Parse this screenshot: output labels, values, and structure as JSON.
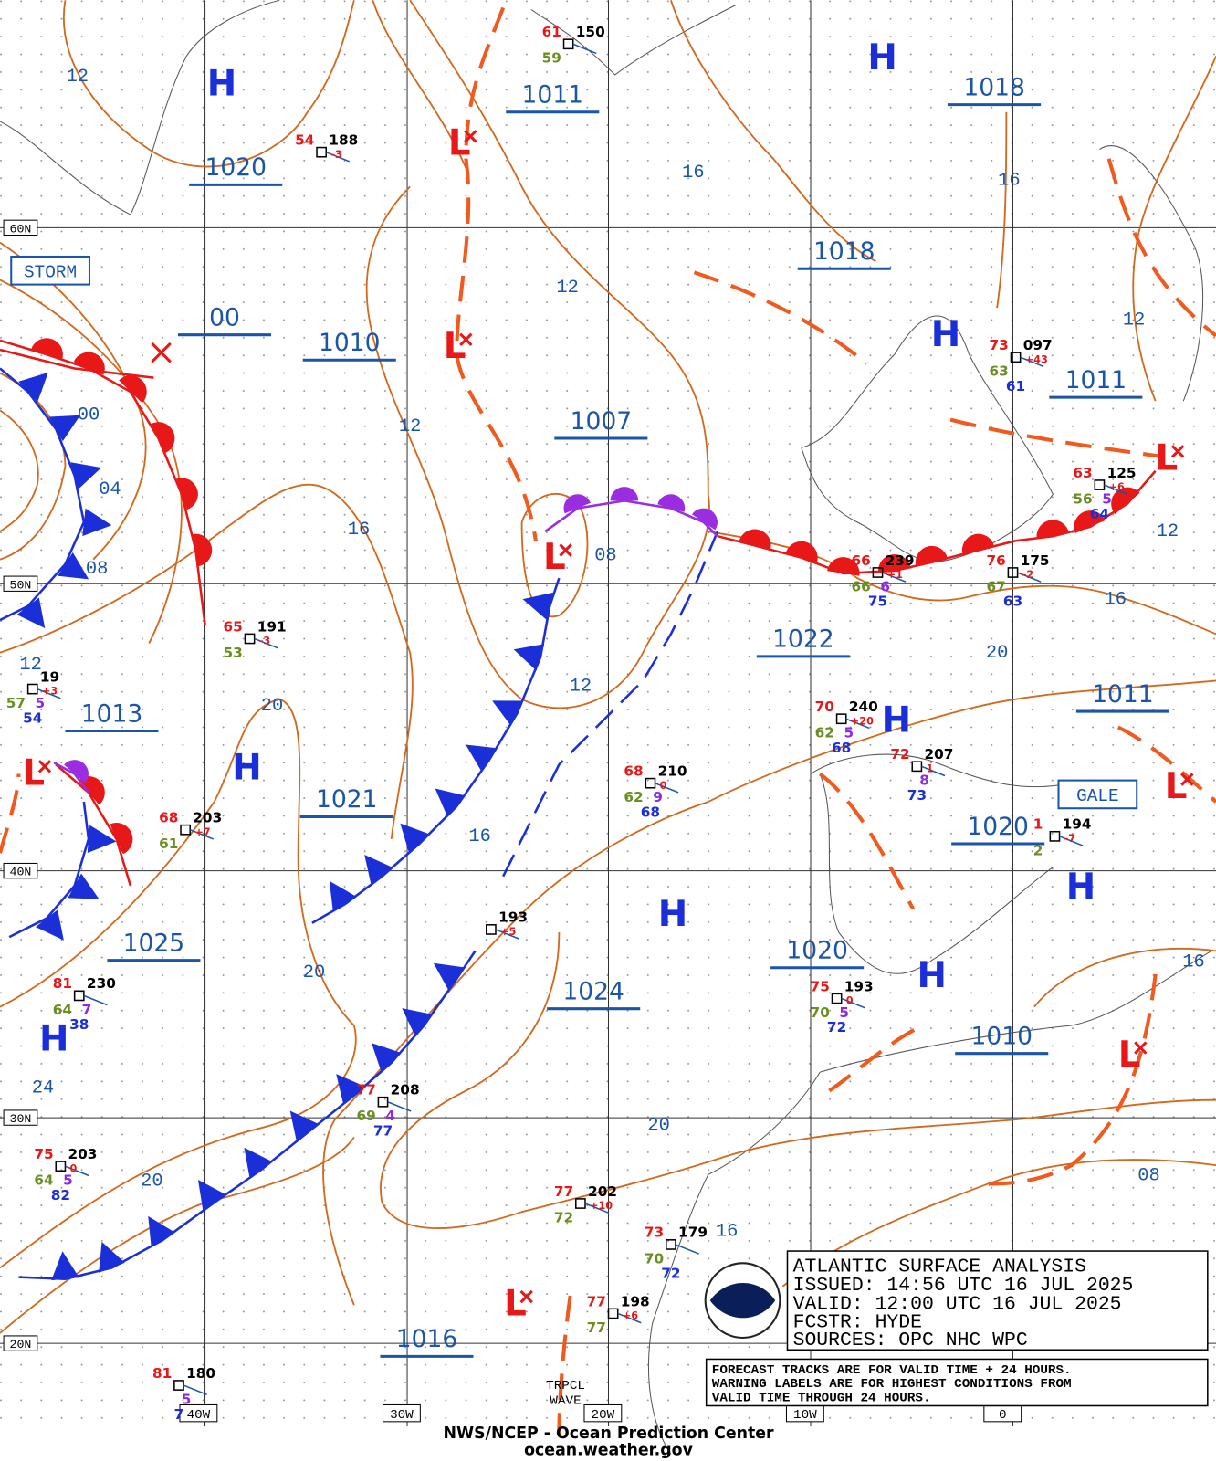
{
  "map": {
    "title": "ATLANTIC SURFACE ANALYSIS",
    "issued": "ISSUED:  14:56 UTC 16 JUL 2025",
    "valid": "VALID:   12:00 UTC 16 JUL 2025",
    "forecaster": "FCSTR:   HYDE",
    "sources": "SOURCES:  OPC NHC WPC",
    "note_lines": [
      "FORECAST TRACKS ARE FOR VALID TIME + 24 HOURS.",
      "WARNING LABELS ARE FOR HIGHEST CONDITIONS FROM",
      "VALID TIME THROUGH 24 HOURS."
    ],
    "footer": "NWS/NCEP - Ocean Prediction Center",
    "url": "ocean.weather.gov",
    "lat_labels": [
      "60N",
      "50N",
      "40N",
      "30N",
      "20N"
    ],
    "lon_labels": [
      "40W",
      "30W",
      "20W",
      "10W",
      "0"
    ],
    "high_symbol": "H",
    "low_symbol": "L",
    "pressure_labels": [
      "1011",
      "1018",
      "1020",
      "1018",
      "00",
      "1010",
      "1011",
      "1007",
      "1013",
      "1021",
      "1022",
      "1011",
      "1020",
      "1025",
      "1024",
      "1020",
      "1010",
      "1016"
    ],
    "isobar_labels": [
      "12",
      "16",
      "16",
      "12",
      "12",
      "12",
      "00",
      "04",
      "08",
      "16",
      "08",
      "12",
      "16",
      "12",
      "20",
      "12",
      "20",
      "16",
      "20",
      "16",
      "24",
      "20",
      "20",
      "08",
      "16"
    ],
    "warnings": [
      "STORM",
      "GALE"
    ],
    "wave_label": [
      "TRPCL",
      "WAVE"
    ],
    "stations": [
      {
        "temp": "61",
        "pressure": "150",
        "dewpoint": "59"
      },
      {
        "temp": "54",
        "pressure": "188",
        "tendency": "-3"
      },
      {
        "temp": "73",
        "pressure": "097",
        "tendency": "+43",
        "dewpoint": "63",
        "sst": "61"
      },
      {
        "temp": "63",
        "pressure": "125",
        "tendency": "+6",
        "dewpoint": "56",
        "weather": "5",
        "sst": "64"
      },
      {
        "temp": "66",
        "pressure": "239",
        "tendency": "+1",
        "dewpoint": "66",
        "weather": "6",
        "sst": "75"
      },
      {
        "temp": "76",
        "pressure": "175",
        "tendency": "-2",
        "dewpoint": "67",
        "sst": "63"
      },
      {
        "temp": "65",
        "pressure": "191",
        "tendency": "-3",
        "dewpoint": "53"
      },
      {
        "pressure": "19",
        "tendency": "+3",
        "dewpoint": "57",
        "weather": "5",
        "sst": "54"
      },
      {
        "temp": "70",
        "pressure": "240",
        "tendency": "+20",
        "dewpoint": "62",
        "weather": "5",
        "sst": "68"
      },
      {
        "temp": "72",
        "pressure": "207",
        "tendency": "1",
        "weather": "8",
        "sst": "73"
      },
      {
        "temp": "68",
        "pressure": "210",
        "tendency": "0",
        "dewpoint": "62",
        "weather": "9",
        "sst": "68"
      },
      {
        "temp": "68",
        "pressure": "203",
        "tendency": "+7",
        "dewpoint": "61"
      },
      {
        "temp": "1",
        "pressure": "194",
        "tendency": "-7",
        "dewpoint": "2"
      },
      {
        "pressure": "193",
        "tendency": "+5"
      },
      {
        "temp": "81",
        "pressure": "230",
        "dewpoint": "64",
        "weather": "7",
        "sst": "38"
      },
      {
        "temp": "75",
        "pressure": "193",
        "tendency": "0",
        "dewpoint": "70",
        "weather": "5",
        "sst": "72"
      },
      {
        "temp": "77",
        "pressure": "208",
        "dewpoint": "69",
        "weather": "4",
        "sst": "77"
      },
      {
        "temp": "75",
        "pressure": "203",
        "tendency": "0",
        "dewpoint": "64",
        "weather": "5",
        "sst": "82"
      },
      {
        "temp": "77",
        "pressure": "202",
        "tendency": "+10",
        "dewpoint": "72"
      },
      {
        "temp": "73",
        "pressure": "179",
        "dewpoint": "70",
        "sst": "72"
      },
      {
        "temp": "77",
        "pressure": "198",
        "tendency": "+6",
        "dewpoint": "77"
      },
      {
        "temp": "81",
        "pressure": "180",
        "weather": "5",
        "sst": "7"
      }
    ]
  }
}
